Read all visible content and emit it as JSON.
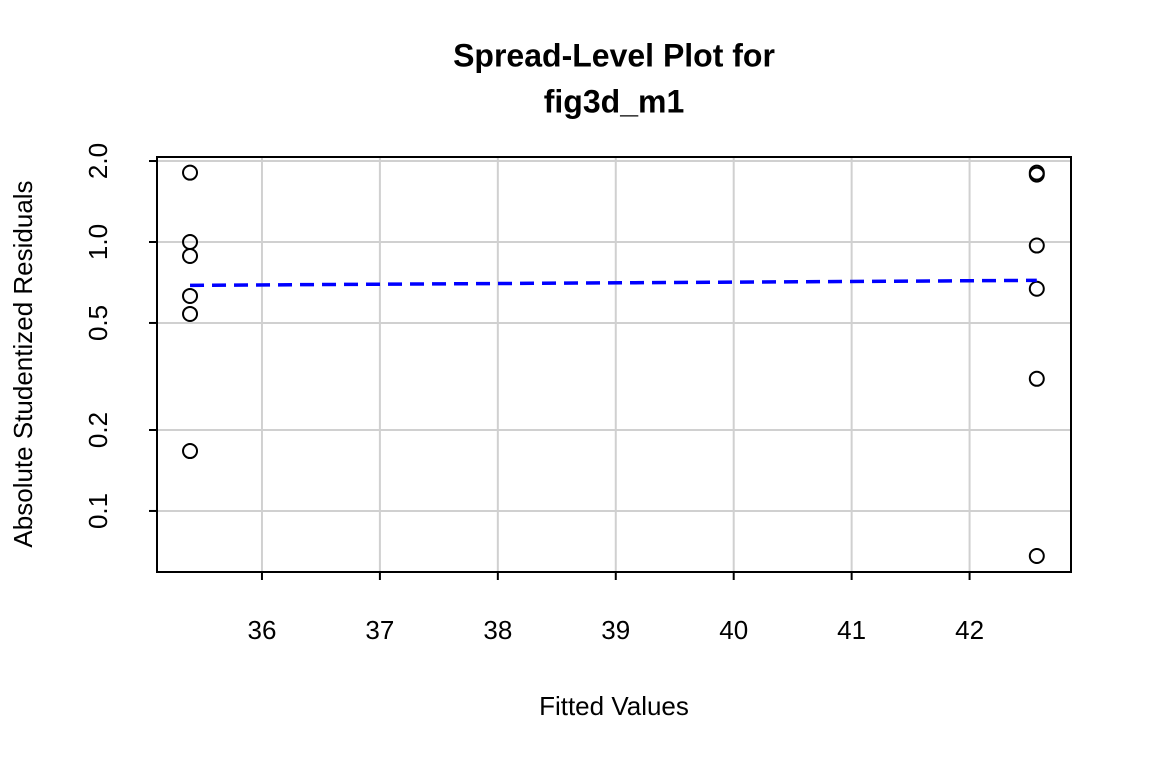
{
  "chart_data": {
    "type": "scatter",
    "title": [
      "Spread-Level Plot for",
      "fig3d_m1"
    ],
    "xlabel": "Fitted Values",
    "ylabel": "Absolute Studentized Residuals",
    "xlim": [
      35.11,
      42.86
    ],
    "xticks": [
      36,
      37,
      38,
      39,
      40,
      41,
      42
    ],
    "ylim": [
      0.0593,
      2.07
    ],
    "yscale": "log",
    "yticks": [
      {
        "value": 0.1,
        "label": "0.1"
      },
      {
        "value": 0.2,
        "label": "0.2"
      },
      {
        "value": 0.5,
        "label": "0.5"
      },
      {
        "value": 1,
        "label": "1.0"
      },
      {
        "value": 2,
        "label": "2.0"
      }
    ],
    "grid": true,
    "series": [
      {
        "color": "#000000",
        "marker": "open-circle",
        "x": [
          35.39,
          35.39,
          35.39,
          35.39,
          35.39,
          35.39,
          42.57,
          42.57,
          42.57,
          42.57,
          42.57,
          42.57
        ],
        "values": [
          1.81,
          1.0,
          0.887,
          0.63,
          0.54,
          0.167,
          1.81,
          1.78,
          0.97,
          0.67,
          0.31,
          0.068
        ]
      },
      {
        "color": "#0000ff",
        "line_style": "dashed",
        "x": [
          35.39,
          42.57
        ],
        "values": [
          0.69,
          0.72
        ]
      }
    ]
  }
}
